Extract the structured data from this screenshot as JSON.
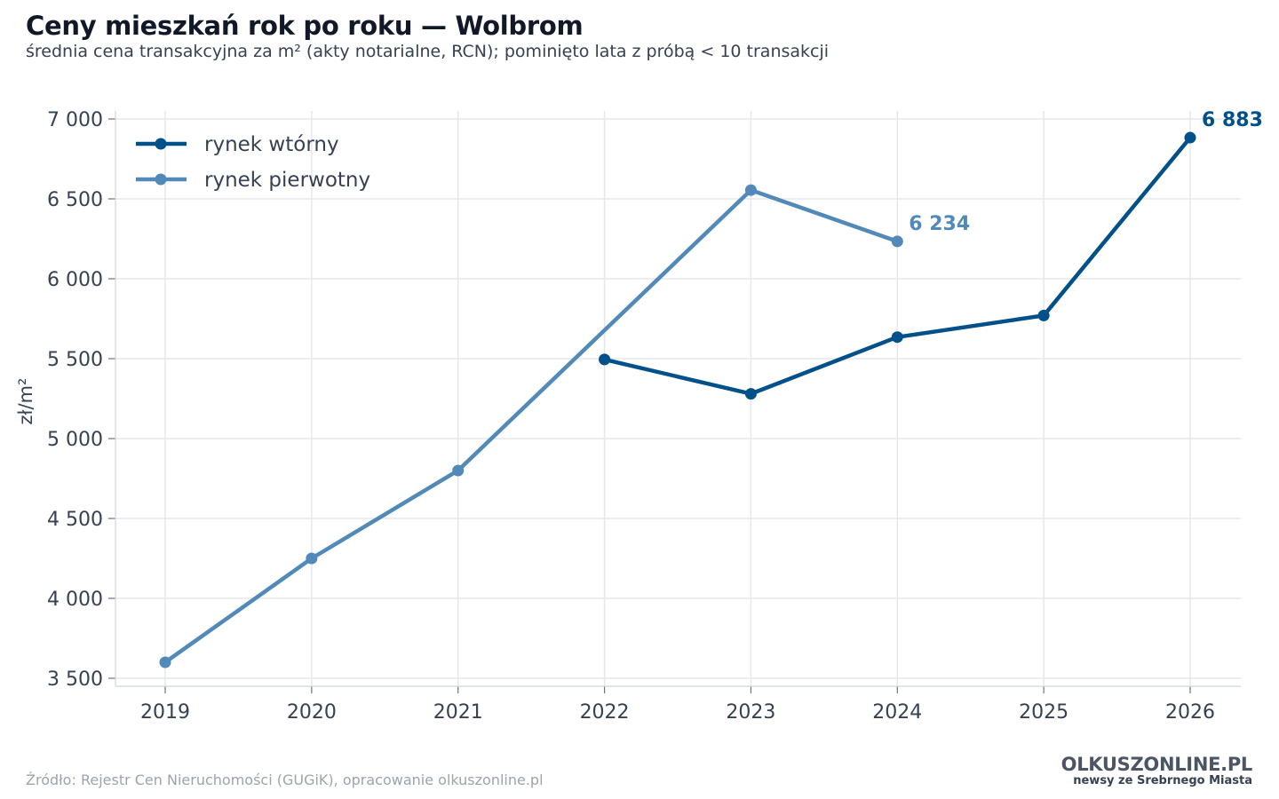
{
  "header": {
    "title": "Ceny mieszkań rok po roku — Wolbrom",
    "subtitle": "średnia cena transakcyjna za m² (akty notarialne, RCN); pominięto lata z próbą < 10 transakcji"
  },
  "footer": {
    "source": "Źródło: Rejestr Cen Nieruchomości (GUGiK), opracowanie olkuszonline.pl",
    "brand_name": "OLKUSZONLINE.PL",
    "brand_tagline": "newsy ze Srebrnego Miasta"
  },
  "chart_data": {
    "type": "line",
    "ylabel": "zł/m²",
    "xlabel": "",
    "x": [
      2019,
      2020,
      2021,
      2022,
      2023,
      2024,
      2025,
      2026
    ],
    "x_tick_labels": [
      "2019",
      "2020",
      "2021",
      "2022",
      "2023",
      "2024",
      "2025",
      "2026"
    ],
    "ylim": [
      3450,
      7050
    ],
    "y_ticks": [
      3500,
      4000,
      4500,
      5000,
      5500,
      6000,
      6500,
      7000
    ],
    "y_tick_labels": [
      "3 500",
      "4 000",
      "4 500",
      "5 000",
      "5 500",
      "6 000",
      "6 500",
      "7 000"
    ],
    "grid": true,
    "legend_position": "top-left",
    "series": [
      {
        "name": "rynek wtórny",
        "color": "#00508a",
        "x": [
          2022,
          2023,
          2024,
          2025,
          2026
        ],
        "y": [
          5495,
          5280,
          5635,
          5770,
          6883
        ],
        "end_label": "6 883"
      },
      {
        "name": "rynek pierwotny",
        "color": "#5189b9",
        "x": [
          2019,
          2020,
          2021,
          2023,
          2024
        ],
        "y": [
          3600,
          4250,
          4800,
          6555,
          6234
        ],
        "end_label": "6 234"
      }
    ]
  }
}
